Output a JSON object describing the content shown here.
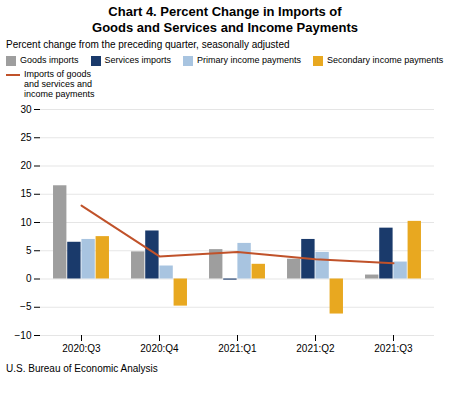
{
  "chart_data": {
    "type": "bar",
    "title": "Chart 4. Percent Change in Imports of\nGoods and Services and Income Payments",
    "subtitle": "Percent change from the preceding quarter, seasonally adjusted",
    "footnote": "U.S. Bureau of Economic Analysis",
    "categories": [
      "2020:Q3",
      "2020:Q4",
      "2021:Q1",
      "2021:Q2",
      "2021:Q3"
    ],
    "series": [
      {
        "name": "Goods imports",
        "color": "#9e9e9e",
        "values": [
          16.5,
          4.8,
          5.2,
          3.5,
          0.7
        ]
      },
      {
        "name": "Services imports",
        "color": "#1a3a6b",
        "values": [
          6.5,
          8.5,
          -0.2,
          7.0,
          9.0
        ]
      },
      {
        "name": "Primary income payments",
        "color": "#a8c4e0",
        "values": [
          7.0,
          2.3,
          6.3,
          4.7,
          3.0
        ]
      },
      {
        "name": "Secondary income payments",
        "color": "#e8a820",
        "values": [
          7.5,
          -4.8,
          2.6,
          -6.2,
          10.2
        ]
      },
      {
        "name": "Imports of goods\nand services and\nincome payments",
        "type": "line",
        "color": "#c0522a",
        "values": [
          13.0,
          4.0,
          4.8,
          3.5,
          2.8
        ]
      }
    ],
    "ylim": [
      -10,
      30
    ],
    "yticks": [
      -10,
      -5,
      0,
      5,
      10,
      15,
      20,
      25,
      30
    ],
    "grid": true,
    "legend": "upper left"
  }
}
